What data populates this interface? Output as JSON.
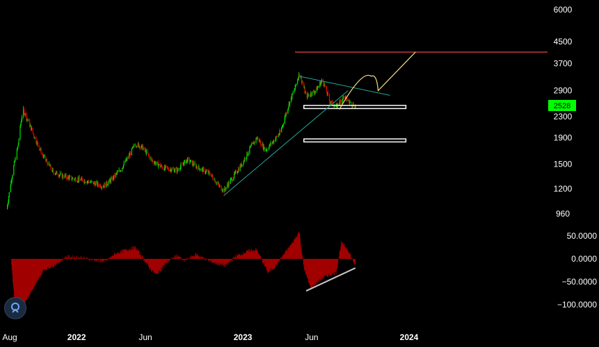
{
  "chart_data": {
    "type": "candlestick-with-oscillator",
    "price_axis": {
      "scale": "log",
      "ticks": [
        "6000",
        "4500",
        "3700",
        "2900",
        "2300",
        "1900",
        "1500",
        "1200",
        "960"
      ],
      "tick_values": [
        6000,
        4500,
        3700,
        2900,
        2300,
        1900,
        1500,
        1200,
        960
      ]
    },
    "time_axis": {
      "ticks": [
        "Aug",
        "2022",
        "Jun",
        "2023",
        "Jun",
        "2024"
      ],
      "tick_dates": [
        "2021-08",
        "2022-01",
        "2022-06",
        "2023-01",
        "2023-06",
        "2024-01"
      ]
    },
    "last_price": "2528",
    "colors": {
      "up": "#00e000",
      "down": "#e00000",
      "last_price_bg": "#00ff00",
      "resistance": "#ff4d4d",
      "trend": "#26a69a",
      "projection": "#f6e27a",
      "zone": "#ffffff",
      "oscillator": "#b30000",
      "osc_trend": "#c8c8c8"
    },
    "price_path": [
      [
        "2021-08-01",
        1000
      ],
      [
        "2021-08-25",
        1750
      ],
      [
        "2021-09-05",
        2450
      ],
      [
        "2021-10-01",
        1900
      ],
      [
        "2021-10-20",
        1600
      ],
      [
        "2021-11-10",
        1400
      ],
      [
        "2021-12-01",
        1350
      ],
      [
        "2021-12-20",
        1320
      ],
      [
        "2022-01-15",
        1300
      ],
      [
        "2022-02-10",
        1260
      ],
      [
        "2022-03-01",
        1230
      ],
      [
        "2022-03-20",
        1310
      ],
      [
        "2022-04-10",
        1450
      ],
      [
        "2022-04-25",
        1600
      ],
      [
        "2022-05-10",
        1800
      ],
      [
        "2022-05-25",
        1750
      ],
      [
        "2022-06-15",
        1550
      ],
      [
        "2022-07-10",
        1450
      ],
      [
        "2022-08-10",
        1420
      ],
      [
        "2022-09-01",
        1560
      ],
      [
        "2022-09-25",
        1450
      ],
      [
        "2022-10-20",
        1380
      ],
      [
        "2022-11-10",
        1230
      ],
      [
        "2022-11-20",
        1180
      ],
      [
        "2022-12-10",
        1330
      ],
      [
        "2022-12-30",
        1500
      ],
      [
        "2023-01-15",
        1700
      ],
      [
        "2023-02-01",
        1900
      ],
      [
        "2023-02-20",
        1700
      ],
      [
        "2023-03-10",
        1850
      ],
      [
        "2023-03-25",
        2000
      ],
      [
        "2023-04-10",
        2500
      ],
      [
        "2023-04-25",
        2950
      ],
      [
        "2023-05-05",
        3400
      ],
      [
        "2023-05-20",
        2750
      ],
      [
        "2023-06-10",
        2900
      ],
      [
        "2023-06-25",
        3200
      ],
      [
        "2023-07-10",
        2650
      ],
      [
        "2023-07-25",
        2500
      ],
      [
        "2023-08-10",
        2750
      ],
      [
        "2023-08-25",
        2600
      ],
      [
        "2023-09-05",
        2528
      ]
    ],
    "oscillator_axis": {
      "ticks": [
        "50.0000",
        "0.0000",
        "−50.0000",
        "−100.0000"
      ],
      "tick_values": [
        50,
        0,
        -50,
        -100
      ],
      "range": [
        -130,
        70
      ]
    },
    "oscillator_path": [
      [
        "2021-08-10",
        0
      ],
      [
        "2021-08-20",
        -120
      ],
      [
        "2021-09-05",
        -100
      ],
      [
        "2021-10-01",
        -60
      ],
      [
        "2021-10-20",
        -25
      ],
      [
        "2021-11-20",
        -10
      ],
      [
        "2021-12-10",
        5
      ],
      [
        "2022-01-10",
        3
      ],
      [
        "2022-02-10",
        -3
      ],
      [
        "2022-03-05",
        -6
      ],
      [
        "2022-03-25",
        10
      ],
      [
        "2022-04-20",
        20
      ],
      [
        "2022-05-10",
        25
      ],
      [
        "2022-05-25",
        5
      ],
      [
        "2022-06-10",
        -20
      ],
      [
        "2022-06-25",
        -35
      ],
      [
        "2022-07-15",
        -10
      ],
      [
        "2022-08-10",
        8
      ],
      [
        "2022-08-25",
        -5
      ],
      [
        "2022-09-20",
        10
      ],
      [
        "2022-10-20",
        -5
      ],
      [
        "2022-11-10",
        -12
      ],
      [
        "2022-11-25",
        -15
      ],
      [
        "2022-12-15",
        5
      ],
      [
        "2023-01-15",
        18
      ],
      [
        "2023-02-01",
        20
      ],
      [
        "2023-02-25",
        -30
      ],
      [
        "2023-03-15",
        -15
      ],
      [
        "2023-04-01",
        10
      ],
      [
        "2023-04-20",
        35
      ],
      [
        "2023-05-05",
        60
      ],
      [
        "2023-05-15",
        -20
      ],
      [
        "2023-05-30",
        -65
      ],
      [
        "2023-06-15",
        -50
      ],
      [
        "2023-06-28",
        -40
      ],
      [
        "2023-07-10",
        -35
      ],
      [
        "2023-07-25",
        -30
      ],
      [
        "2023-08-05",
        35
      ],
      [
        "2023-08-20",
        20
      ],
      [
        "2023-09-05",
        -15
      ]
    ],
    "drawings": {
      "resistance_level": 4100,
      "zone_upper": [
        2470,
        2540
      ],
      "zone_lower": [
        1830,
        1880
      ],
      "rising_trend": [
        [
          "2022-11-20",
          1130
        ],
        [
          "2023-08-20",
          2900
        ]
      ],
      "falling_trend": [
        [
          "2023-05-05",
          3300
        ],
        [
          "2023-11-20",
          2780
        ]
      ],
      "projection": [
        [
          "2023-08-01",
          2450
        ],
        [
          "2023-09-20",
          3100
        ],
        [
          "2023-10-10",
          3300
        ],
        [
          "2023-10-25",
          2900
        ],
        [
          "2024-01-15",
          4100
        ]
      ],
      "oscillator_trend": [
        [
          "2023-05-20",
          -70
        ],
        [
          "2023-09-05",
          -20
        ]
      ]
    }
  }
}
